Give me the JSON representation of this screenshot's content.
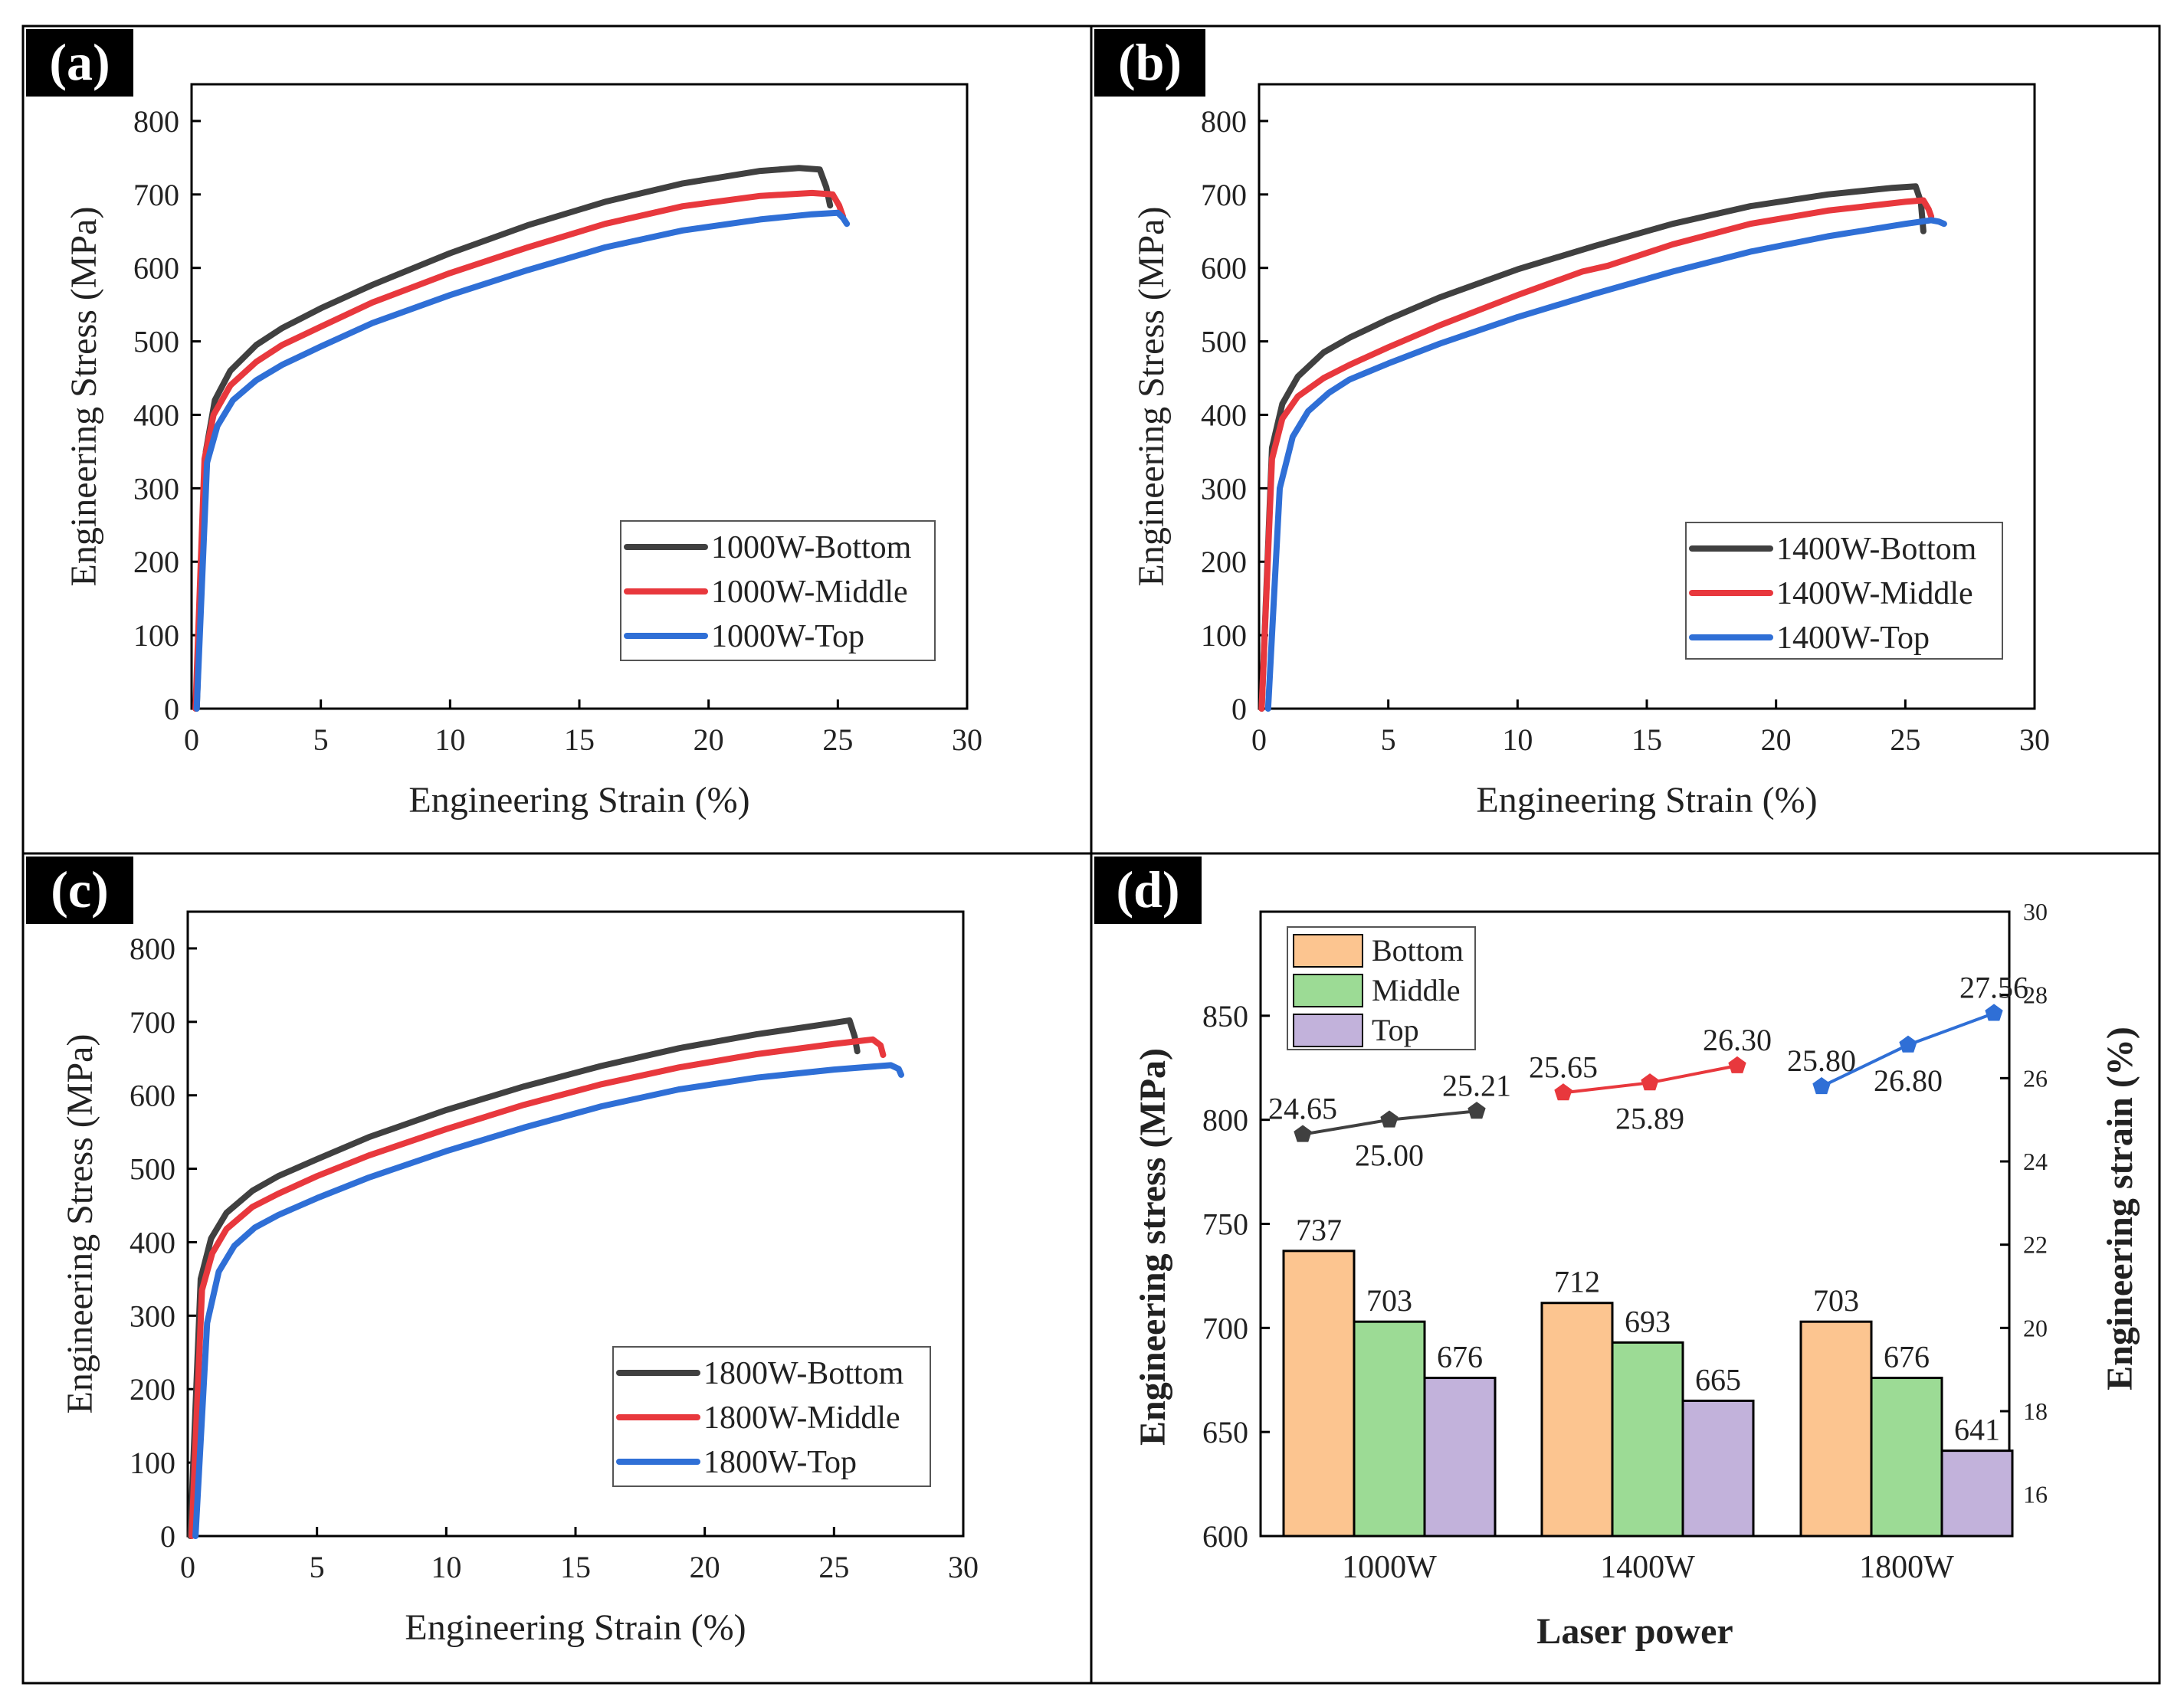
{
  "figure": {
    "colors": {
      "black_series": "#404040",
      "red_series": "#e8383d",
      "blue_series": "#2f6fd6",
      "bar_bottom": "#fcc590",
      "bar_middle": "#9cdb95",
      "bar_top": "#c2b2db",
      "frame": "#000000",
      "label_box": "#000000",
      "label_text": "#ffffff"
    }
  },
  "chart_data": [
    {
      "panel_label": "(a)",
      "type": "line",
      "xlabel": "Engineering Strain (%)",
      "ylabel": "Engineering Stress (MPa)",
      "xlim": [
        0,
        30
      ],
      "ylim": [
        0,
        850
      ],
      "xticks": [
        0,
        5,
        10,
        15,
        20,
        25,
        30
      ],
      "yticks": [
        0,
        100,
        200,
        300,
        400,
        500,
        600,
        700,
        800
      ],
      "legend_position": "bottom-right",
      "series": [
        {
          "name": "1000W-Bottom",
          "color": "black_series",
          "x": [
            0.2,
            0.55,
            0.9,
            1.5,
            2.5,
            3.5,
            5,
            7,
            10,
            13,
            16,
            19,
            22,
            23.5,
            24.3,
            24.55,
            24.7
          ],
          "y": [
            0,
            350,
            420,
            460,
            495,
            518,
            545,
            577,
            620,
            658,
            690,
            715,
            732,
            736,
            734,
            710,
            685
          ]
        },
        {
          "name": "1000W-Middle",
          "color": "red_series",
          "x": [
            0.15,
            0.5,
            0.85,
            1.5,
            2.5,
            3.5,
            5,
            7,
            10,
            13,
            16,
            19,
            22,
            24,
            24.8,
            25.05,
            25.2
          ],
          "y": [
            0,
            340,
            400,
            440,
            472,
            495,
            520,
            553,
            593,
            628,
            660,
            684,
            698,
            702,
            700,
            685,
            670
          ]
        },
        {
          "name": "1000W-Top",
          "color": "blue_series",
          "x": [
            0.2,
            0.6,
            1.0,
            1.6,
            2.5,
            3.5,
            5,
            7,
            10,
            13,
            16,
            19,
            22,
            24,
            25.0,
            25.2,
            25.35
          ],
          "y": [
            0,
            335,
            385,
            420,
            447,
            468,
            493,
            525,
            563,
            597,
            628,
            651,
            666,
            673,
            675,
            668,
            660
          ]
        }
      ]
    },
    {
      "panel_label": "(b)",
      "type": "line",
      "xlabel": "Engineering Strain (%)",
      "ylabel": "Engineering Stress (MPa)",
      "xlim": [
        0,
        30
      ],
      "ylim": [
        0,
        850
      ],
      "xticks": [
        0,
        5,
        10,
        15,
        20,
        25,
        30
      ],
      "yticks": [
        0,
        100,
        200,
        300,
        400,
        500,
        600,
        700,
        800
      ],
      "legend_position": "bottom-right",
      "series": [
        {
          "name": "1400W-Bottom",
          "color": "black_series",
          "x": [
            0.1,
            0.5,
            0.9,
            1.5,
            2.5,
            3.5,
            5,
            7,
            10,
            13,
            16,
            19,
            22,
            24.5,
            25.4,
            25.6,
            25.7
          ],
          "y": [
            0,
            355,
            415,
            452,
            485,
            505,
            530,
            560,
            598,
            630,
            660,
            684,
            700,
            709,
            711,
            690,
            650
          ]
        },
        {
          "name": "1400W-Middle",
          "color": "red_series",
          "x": [
            0.1,
            0.5,
            0.9,
            1.5,
            2.5,
            3.5,
            5,
            7,
            10,
            12.5,
            13.5,
            16,
            19,
            22,
            25,
            25.7,
            25.9,
            26.0
          ],
          "y": [
            0,
            340,
            395,
            425,
            450,
            468,
            492,
            522,
            563,
            595,
            603,
            632,
            660,
            678,
            690,
            692,
            680,
            670
          ]
        },
        {
          "name": "1400W-Top",
          "color": "blue_series",
          "x": [
            0.35,
            0.8,
            1.3,
            1.9,
            2.7,
            3.5,
            5,
            7,
            10,
            13,
            16,
            19,
            22,
            25,
            26.0,
            26.3,
            26.5
          ],
          "y": [
            0,
            300,
            370,
            405,
            430,
            448,
            470,
            497,
            533,
            565,
            595,
            622,
            643,
            660,
            665,
            663,
            660
          ]
        }
      ]
    },
    {
      "panel_label": "(c)",
      "type": "line",
      "xlabel": "Engineering Strain (%)",
      "ylabel": "Engineering Stress (MPa)",
      "xlim": [
        0,
        30
      ],
      "ylim": [
        0,
        850
      ],
      "xticks": [
        0,
        5,
        10,
        15,
        20,
        25,
        30
      ],
      "yticks": [
        0,
        100,
        200,
        300,
        400,
        500,
        600,
        700,
        800
      ],
      "legend_position": "bottom-right",
      "series": [
        {
          "name": "1800W-Bottom",
          "color": "black_series",
          "x": [
            0.1,
            0.5,
            0.9,
            1.5,
            2.5,
            3.5,
            5,
            7,
            10,
            13,
            16,
            19,
            22,
            24.5,
            25.6,
            25.8,
            25.9
          ],
          "y": [
            0,
            350,
            405,
            440,
            470,
            490,
            513,
            543,
            580,
            612,
            640,
            664,
            683,
            696,
            702,
            680,
            660
          ]
        },
        {
          "name": "1800W-Middle",
          "color": "red_series",
          "x": [
            0.15,
            0.55,
            0.95,
            1.5,
            2.5,
            3.5,
            5,
            7,
            10,
            13,
            16,
            19,
            22,
            25,
            26.5,
            26.8,
            26.9
          ],
          "y": [
            0,
            335,
            385,
            418,
            448,
            466,
            490,
            518,
            554,
            587,
            615,
            638,
            656,
            670,
            676,
            668,
            655
          ]
        },
        {
          "name": "1800W-Top",
          "color": "blue_series",
          "x": [
            0.3,
            0.75,
            1.2,
            1.8,
            2.6,
            3.5,
            5,
            7,
            10,
            13,
            16,
            19,
            22,
            25,
            27.2,
            27.5,
            27.6
          ],
          "y": [
            0,
            290,
            360,
            395,
            420,
            437,
            460,
            488,
            524,
            556,
            585,
            608,
            624,
            635,
            641,
            636,
            628
          ]
        }
      ]
    },
    {
      "panel_label": "(d)",
      "type": "bar",
      "xlabel": "Laser power",
      "ylabel": "Engineering stress (MPa)",
      "y2label": "Engineering strain (%)",
      "categories": [
        "1000W",
        "1400W",
        "1800W"
      ],
      "ylim": [
        600,
        900
      ],
      "yticks": [
        600,
        650,
        700,
        750,
        800,
        850
      ],
      "y2lim": [
        15,
        30
      ],
      "y2ticks": [
        16,
        18,
        20,
        22,
        24,
        26,
        28,
        30
      ],
      "legend_position": "top-left",
      "bar_series": [
        {
          "name": "Bottom",
          "color": "bar_bottom",
          "values": [
            737,
            712,
            703
          ],
          "labels": [
            "737",
            "712",
            "703"
          ]
        },
        {
          "name": "Middle",
          "color": "bar_middle",
          "values": [
            703,
            693,
            676
          ],
          "labels": [
            "703",
            "693",
            "676"
          ]
        },
        {
          "name": "Top",
          "color": "bar_top",
          "values": [
            676,
            665,
            641
          ],
          "labels": [
            "676",
            "665",
            "641"
          ]
        }
      ],
      "strain_series": [
        {
          "name": "1000W",
          "color": "black_series",
          "values": [
            24.65,
            25.0,
            25.21
          ],
          "labels": [
            "24.65",
            "25.00",
            "25.21"
          ]
        },
        {
          "name": "1400W",
          "color": "red_series",
          "values": [
            25.65,
            25.89,
            26.3
          ],
          "labels": [
            "25.65",
            "25.89",
            "26.30"
          ]
        },
        {
          "name": "1800W",
          "color": "blue_series",
          "values": [
            25.8,
            26.8,
            27.56
          ],
          "labels": [
            "25.80",
            "26.80",
            "27.56"
          ]
        }
      ]
    }
  ]
}
